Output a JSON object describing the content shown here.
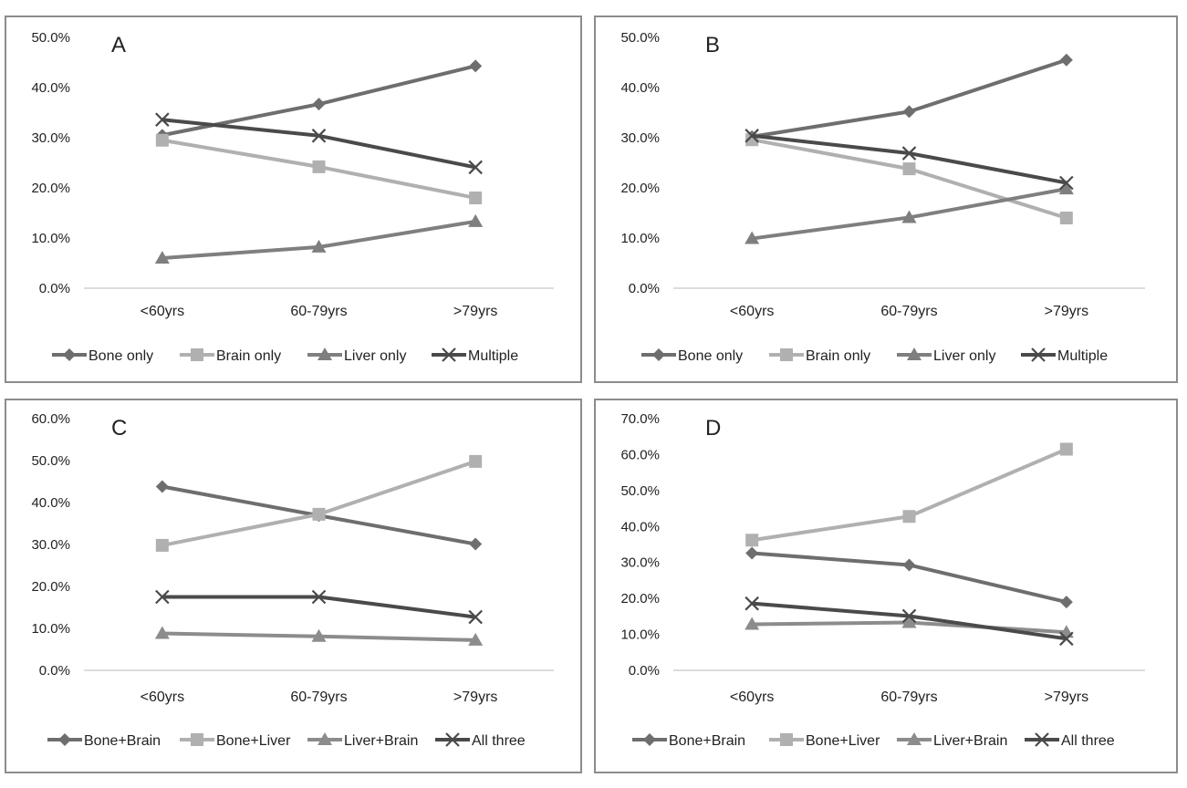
{
  "chart_data": [
    {
      "type": "line",
      "title": "A",
      "categories": [
        "<60yrs",
        "60-79yrs",
        ">79yrs"
      ],
      "ylim": [
        0,
        50
      ],
      "yticks": [
        "0.0%",
        "10.0%",
        "20.0%",
        "30.0%",
        "40.0%",
        "50.0%"
      ],
      "grid": false,
      "legend_position": "bottom",
      "series": [
        {
          "name": "Bone only",
          "values": [
            30.5,
            36.7,
            44.3
          ],
          "marker": "diamond",
          "color": "#6e6e6e"
        },
        {
          "name": "Brain only",
          "values": [
            29.5,
            24.2,
            18.0
          ],
          "marker": "square",
          "color": "#b0b0b0"
        },
        {
          "name": "Liver only",
          "values": [
            6.0,
            8.2,
            13.3
          ],
          "marker": "triangle",
          "color": "#7f7f7f"
        },
        {
          "name": "Multiple",
          "values": [
            33.6,
            30.4,
            24.1
          ],
          "marker": "x",
          "color": "#4a4a4a"
        }
      ]
    },
    {
      "type": "line",
      "title": "B",
      "categories": [
        "<60yrs",
        "60-79yrs",
        ">79yrs"
      ],
      "ylim": [
        0,
        50
      ],
      "yticks": [
        "0.0%",
        "10.0%",
        "20.0%",
        "30.0%",
        "40.0%",
        "50.0%"
      ],
      "grid": false,
      "legend_position": "bottom",
      "series": [
        {
          "name": "Bone only",
          "values": [
            30.2,
            35.2,
            45.5
          ],
          "marker": "diamond",
          "color": "#6e6e6e"
        },
        {
          "name": "Brain only",
          "values": [
            29.6,
            23.8,
            14.0
          ],
          "marker": "square",
          "color": "#b0b0b0"
        },
        {
          "name": "Liver only",
          "values": [
            9.9,
            14.1,
            19.8
          ],
          "marker": "triangle",
          "color": "#7f7f7f"
        },
        {
          "name": "Multiple",
          "values": [
            30.4,
            26.9,
            21.0
          ],
          "marker": "x",
          "color": "#4a4a4a"
        }
      ]
    },
    {
      "type": "line",
      "title": "C",
      "categories": [
        "<60yrs",
        "60-79yrs",
        ">79yrs"
      ],
      "ylim": [
        0,
        60
      ],
      "yticks": [
        "0.0%",
        "10.0%",
        "20.0%",
        "30.0%",
        "40.0%",
        "50.0%",
        "60.0%"
      ],
      "grid": false,
      "legend_position": "bottom",
      "series": [
        {
          "name": "Bone+Brain",
          "values": [
            43.8,
            36.9,
            30.1
          ],
          "marker": "diamond",
          "color": "#6e6e6e"
        },
        {
          "name": "Bone+Liver",
          "values": [
            29.8,
            37.2,
            49.8
          ],
          "marker": "square",
          "color": "#b0b0b0"
        },
        {
          "name": "Liver+Brain",
          "values": [
            8.8,
            8.1,
            7.2
          ],
          "marker": "triangle",
          "color": "#8c8c8c"
        },
        {
          "name": "All three",
          "values": [
            17.5,
            17.5,
            12.7
          ],
          "marker": "x",
          "color": "#4a4a4a"
        }
      ]
    },
    {
      "type": "line",
      "title": "D",
      "categories": [
        "<60yrs",
        "60-79yrs",
        ">79yrs"
      ],
      "ylim": [
        0,
        70
      ],
      "yticks": [
        "0.0%",
        "10.0%",
        "20.0%",
        "30.0%",
        "40.0%",
        "50.0%",
        "60.0%",
        "70.0%"
      ],
      "grid": false,
      "legend_position": "bottom",
      "series": [
        {
          "name": "Bone+Brain",
          "values": [
            32.6,
            29.3,
            19.0
          ],
          "marker": "diamond",
          "color": "#6e6e6e"
        },
        {
          "name": "Bone+Liver",
          "values": [
            36.2,
            42.8,
            61.5
          ],
          "marker": "square",
          "color": "#b0b0b0"
        },
        {
          "name": "Liver+Brain",
          "values": [
            12.8,
            13.3,
            10.6
          ],
          "marker": "triangle",
          "color": "#8c8c8c"
        },
        {
          "name": "All three",
          "values": [
            18.6,
            15.1,
            8.8
          ],
          "marker": "x",
          "color": "#4a4a4a"
        }
      ]
    }
  ]
}
